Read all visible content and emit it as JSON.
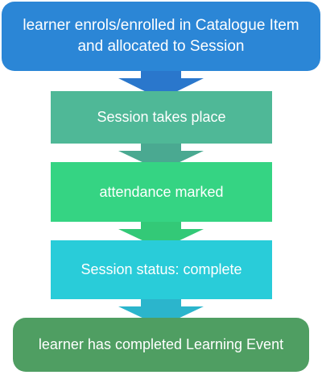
{
  "colors": {
    "step1": "#2b86d6",
    "step2": "#4fb897",
    "step3": "#35d483",
    "step4": "#29ccd9",
    "step5": "#4f9e62",
    "arrow1": "#2a77cc",
    "arrow2": "#4aa991",
    "arrow3": "#33c977",
    "arrow4": "#2bb5cc"
  },
  "steps": [
    {
      "label": "learner enrols/enrolled in Catalogue Item\nand allocated to Session"
    },
    {
      "label": "Session takes place"
    },
    {
      "label": "attendance marked"
    },
    {
      "label": "Session status: complete"
    },
    {
      "label": "learner has completed Learning Event"
    }
  ]
}
